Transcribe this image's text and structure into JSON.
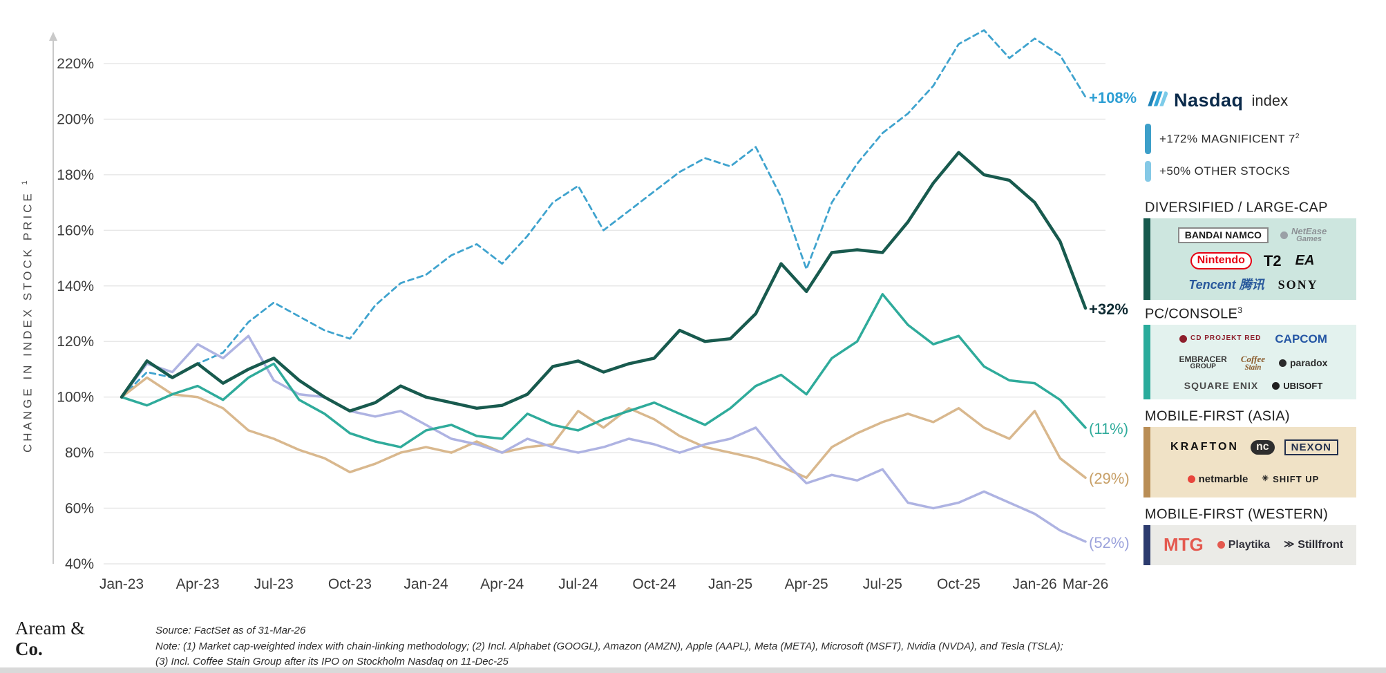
{
  "chart_data": {
    "type": "line",
    "ylabel": "CHANGE IN INDEX STOCK PRICE",
    "ylabel_sup": "1",
    "ytick_suffix": "%",
    "yticks": [
      40,
      60,
      80,
      100,
      120,
      140,
      160,
      180,
      200,
      220
    ],
    "ylim": [
      40,
      235
    ],
    "grid": "horizontal",
    "legend_position": "right",
    "months": [
      "Jan-23",
      "Feb-23",
      "Mar-23",
      "Apr-23",
      "May-23",
      "Jun-23",
      "Jul-23",
      "Aug-23",
      "Sep-23",
      "Oct-23",
      "Nov-23",
      "Dec-23",
      "Jan-24",
      "Feb-24",
      "Mar-24",
      "Apr-24",
      "May-24",
      "Jun-24",
      "Jul-24",
      "Aug-24",
      "Sep-24",
      "Oct-24",
      "Nov-24",
      "Dec-24",
      "Jan-25",
      "Feb-25",
      "Mar-25",
      "Apr-25",
      "May-25",
      "Jun-25",
      "Jul-25",
      "Aug-25",
      "Sep-25",
      "Oct-25",
      "Nov-25",
      "Dec-25",
      "Jan-26",
      "Feb-26",
      "Mar-26"
    ],
    "xticks": [
      {
        "label": "Jan-23",
        "m": 0
      },
      {
        "label": "Apr-23",
        "m": 3
      },
      {
        "label": "Jul-23",
        "m": 6
      },
      {
        "label": "Oct-23",
        "m": 9
      },
      {
        "label": "Jan-24",
        "m": 12
      },
      {
        "label": "Apr-24",
        "m": 15
      },
      {
        "label": "Jul-24",
        "m": 18
      },
      {
        "label": "Oct-24",
        "m": 21
      },
      {
        "label": "Jan-25",
        "m": 24
      },
      {
        "label": "Apr-25",
        "m": 27
      },
      {
        "label": "Jul-25",
        "m": 30
      },
      {
        "label": "Oct-25",
        "m": 33
      },
      {
        "label": "Jan-26",
        "m": 36
      },
      {
        "label": "Mar-26",
        "m": 38
      }
    ],
    "series": [
      {
        "id": "nasdaq",
        "name": "Nasdaq index",
        "color": "#3fa3ce",
        "dash": true,
        "width": 2.8,
        "end_label": "+108%",
        "end_color": "#2e9fd4",
        "end_bold": true,
        "values": [
          100,
          109,
          107,
          112,
          116,
          127,
          134,
          129,
          124,
          121,
          133,
          141,
          144,
          151,
          155,
          148,
          158,
          170,
          176,
          160,
          167,
          174,
          181,
          186,
          183,
          190,
          172,
          146,
          170,
          184,
          195,
          202,
          212,
          227,
          232,
          222,
          229,
          223,
          208
        ]
      },
      {
        "id": "mobile-first-asia",
        "name": "Mobile-First (Asia)",
        "color": "#d9b88e",
        "dash": false,
        "width": 3.5,
        "end_label": "(29%)",
        "end_color": "#c79f66",
        "end_bold": false,
        "values": [
          100,
          107,
          101,
          100,
          96,
          88,
          85,
          81,
          78,
          73,
          76,
          80,
          82,
          80,
          84,
          80,
          82,
          83,
          95,
          89,
          96,
          92,
          86,
          82,
          80,
          78,
          75,
          71,
          82,
          87,
          91,
          94,
          91,
          96,
          89,
          85,
          95,
          78,
          71
        ]
      },
      {
        "id": "mobile-first-western",
        "name": "Mobile-First (Western)",
        "color": "#aeb3e2",
        "dash": false,
        "width": 3.5,
        "end_label": "(52%)",
        "end_color": "#9ca3dc",
        "end_bold": false,
        "values": [
          100,
          112,
          109,
          119,
          114,
          122,
          106,
          101,
          100,
          95,
          93,
          95,
          90,
          85,
          83,
          80,
          85,
          82,
          80,
          82,
          85,
          83,
          80,
          83,
          85,
          89,
          78,
          69,
          72,
          70,
          74,
          62,
          60,
          62,
          66,
          62,
          58,
          52,
          48
        ]
      },
      {
        "id": "pc-console",
        "name": "PC/Console",
        "color": "#2fab9b",
        "dash": false,
        "width": 3.5,
        "end_label": "(11%)",
        "end_color": "#2fab9b",
        "end_bold": false,
        "values": [
          100,
          97,
          101,
          104,
          99,
          107,
          112,
          99,
          94,
          87,
          84,
          82,
          88,
          90,
          86,
          85,
          94,
          90,
          88,
          92,
          95,
          98,
          94,
          90,
          96,
          104,
          108,
          101,
          114,
          120,
          137,
          126,
          119,
          122,
          111,
          106,
          105,
          99,
          89
        ]
      },
      {
        "id": "diversified-large-cap",
        "name": "Diversified / Large-Cap",
        "color": "#185a4e",
        "dash": false,
        "width": 4.5,
        "end_label": "+32%",
        "end_color": "#0e2b33",
        "end_bold": true,
        "values": [
          100,
          113,
          107,
          112,
          105,
          110,
          114,
          106,
          100,
          95,
          98,
          104,
          100,
          98,
          96,
          97,
          101,
          111,
          113,
          109,
          112,
          114,
          124,
          120,
          121,
          130,
          148,
          138,
          152,
          153,
          152,
          163,
          177,
          188,
          180,
          178,
          170,
          156,
          132
        ]
      }
    ]
  },
  "legend": {
    "nasdaq": {
      "brand": "Nasdaq",
      "index_word": "index",
      "mag7": {
        "label": "+172% MAGNIFICENT 7",
        "sup": "2",
        "bar_color": "#3d9fc9"
      },
      "other": {
        "label": "+50% OTHER STOCKS",
        "bar_color": "#85c9e6"
      }
    },
    "groups": [
      {
        "id": "diversified-large-cap",
        "title": "DIVERSIFIED / LARGE-CAP",
        "box_bg": "#cde6df",
        "bar_color": "#17594d",
        "logos": [
          {
            "id": "bandai-namco",
            "text": "BANDAI NAMCO",
            "c": "#1a1a1a",
            "bg": "#ffffff",
            "bd": "#8a8a8a",
            "fw": "700",
            "fs": 14
          },
          {
            "id": "netease-games",
            "text": "NetEase",
            "text2": "Games",
            "c": "#8d9296",
            "fw": "700",
            "fs": 13,
            "it": true,
            "dot": "#9aa0a6"
          },
          {
            "id": "nintendo",
            "text": "Nintendo",
            "c": "#e60012",
            "bg": "#ffffff",
            "bd": "#e60012",
            "fw": "700",
            "fs": 16,
            "pill": true
          },
          {
            "id": "take-two",
            "text": "T2",
            "c": "#101010",
            "fw": "800",
            "fs": 22
          },
          {
            "id": "ea",
            "text": "EA",
            "c": "#101010",
            "fw": "800",
            "fs": 20,
            "it": true
          },
          {
            "id": "tencent",
            "text": "Tencent 腾讯",
            "c": "#29599c",
            "fw": "800",
            "fs": 18,
            "it": true
          },
          {
            "id": "sony",
            "text": "SONY",
            "c": "#101010",
            "fw": "700",
            "fs": 18,
            "ff": "serif",
            "ls": "2px"
          }
        ]
      },
      {
        "id": "pc-console",
        "title": "PC/CONSOLE",
        "title_sup": "3",
        "box_bg": "#e3f2ee",
        "bar_color": "#2aab9b",
        "logos": [
          {
            "id": "cd-projekt-red",
            "text": "CD PROJEKT RED",
            "c": "#8d1f2c",
            "fw": "700",
            "fs": 10,
            "ls": "1px",
            "dot": "#8d1f2c"
          },
          {
            "id": "capcom",
            "text": "CAPCOM",
            "c": "#2456a4",
            "fw": "800",
            "fs": 17
          },
          {
            "id": "embracer-group",
            "text": "EMBRACER",
            "text2": "GROUP",
            "c": "#3a3a3a",
            "fw": "700",
            "fs": 12
          },
          {
            "id": "coffee-stain",
            "text": "Coffee",
            "text2": "Stain",
            "c": "#8a5a2a",
            "fw": "700",
            "fs": 13,
            "it": true,
            "ff": "serif"
          },
          {
            "id": "paradox-interactive",
            "text": "paradox",
            "c": "#2b2b2b",
            "fw": "700",
            "fs": 14,
            "dot": "#2b2b2b"
          },
          {
            "id": "square-enix",
            "text": "SQUARE ENIX",
            "c": "#4a4a4a",
            "fw": "600",
            "fs": 14,
            "ls": "1px"
          },
          {
            "id": "ubisoft",
            "text": "UBISOFT",
            "c": "#1f1f1f",
            "fw": "700",
            "fs": 13,
            "dot": "#1f1f1f"
          }
        ]
      },
      {
        "id": "mobile-first-asia",
        "title": "MOBILE-FIRST (ASIA)",
        "box_bg": "#f0e2c6",
        "bar_color": "#b98d55",
        "logos": [
          {
            "id": "krafton",
            "text": "KRAFTON",
            "c": "#111111",
            "fw": "800",
            "fs": 16,
            "ls": "3px"
          },
          {
            "id": "ncsoft",
            "text": "nc",
            "c": "#f3ede2",
            "bg": "#2e2e2e",
            "fw": "800",
            "fs": 16,
            "pill": true
          },
          {
            "id": "nexon",
            "text": "NEXON",
            "c": "#23304d",
            "fw": "800",
            "fs": 15,
            "bd": "#23304d",
            "ls": "1px"
          },
          {
            "id": "netmarble",
            "text": "netmarble",
            "c": "#1f1f1f",
            "fw": "700",
            "fs": 15,
            "dot": "#e8453c"
          },
          {
            "id": "shift-up",
            "text": "SHIFT UP",
            "c": "#1f1f1f",
            "fw": "800",
            "fs": 13,
            "prefix": "✳",
            "ls": "1px"
          }
        ]
      },
      {
        "id": "mobile-first-western",
        "title": "MOBILE-FIRST (WESTERN)",
        "box_bg": "#ebebe7",
        "bar_color": "#2c3b6e",
        "logos": [
          {
            "id": "mtg",
            "text": "MTG",
            "c": "#e4594f",
            "fw": "800",
            "fs": 26
          },
          {
            "id": "playtika",
            "text": "Playtika",
            "c": "#33333d",
            "fw": "700",
            "fs": 16,
            "dot": "#e4594f"
          },
          {
            "id": "stillfront",
            "text": "Stillfront",
            "c": "#2b2b33",
            "fw": "700",
            "fs": 16,
            "prefix": "≫"
          }
        ]
      }
    ]
  },
  "footer": {
    "brand_line1": "Aream &",
    "brand_line2": "Co.",
    "source": "Source: FactSet as of 31-Mar-26",
    "note1": "Note: (1) Market cap-weighted index with chain-linking methodology; (2) Incl. Alphabet (GOOGL), Amazon (AMZN), Apple (AAPL), Meta (META), Microsoft (MSFT), Nvidia (NVDA), and Tesla (TSLA);",
    "note2": "(3) Incl. Coffee Stain Group after its IPO on Stockholm Nasdaq on 11-Dec-25"
  }
}
